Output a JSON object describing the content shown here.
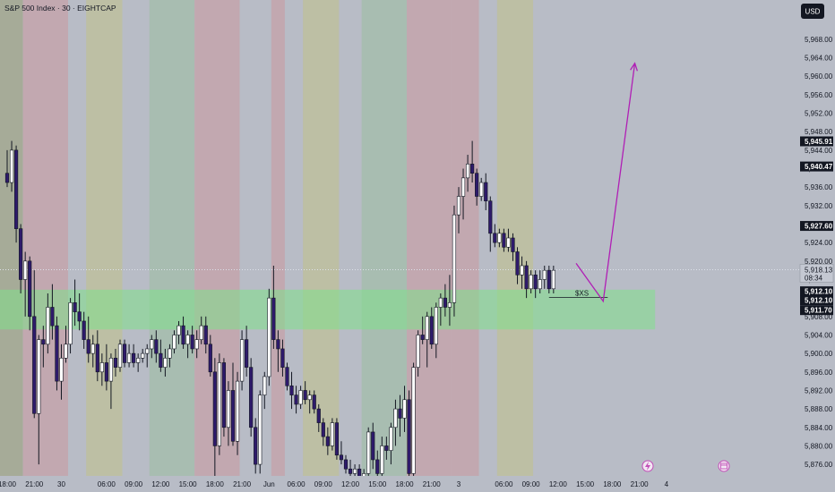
{
  "header": {
    "title": "S&P 500 Index · 30 · EIGHTCAP",
    "currency": "USD"
  },
  "chart_data": {
    "type": "candlestick",
    "title": "S&P 500 Index · 30 · EIGHTCAP",
    "ylim": [
      5873.5,
      5976.5
    ],
    "y_ticks": [
      "5,876.00",
      "5,880.00",
      "5,884.00",
      "5,888.00",
      "5,892.00",
      "5,896.00",
      "5,900.00",
      "5,904.00",
      "5,908.00",
      "5,912.00",
      "5,916.00",
      "5,920.00",
      "5,924.00",
      "5,928.00",
      "5,932.00",
      "5,936.00",
      "5,940.00",
      "5,944.00",
      "5,948.00",
      "5,952.00",
      "5,956.00",
      "5,960.00",
      "5,964.00",
      "5,968.00"
    ],
    "x_ticks": [
      "18:00",
      "21:00",
      "30",
      "06:00",
      "09:00",
      "12:00",
      "15:00",
      "18:00",
      "21:00",
      "Jun",
      "06:00",
      "09:00",
      "12:00",
      "15:00",
      "18:00",
      "21:00",
      "3",
      "06:00",
      "09:00",
      "12:00",
      "15:00",
      "18:00",
      "21:00",
      "4"
    ],
    "x_tick_bars": [
      0,
      6,
      12,
      22,
      28,
      34,
      40,
      46,
      52,
      58,
      64,
      70,
      76,
      82,
      88,
      94,
      100,
      110,
      116,
      122,
      128,
      134,
      140,
      146
    ],
    "session_bands": [
      {
        "start": -3.5,
        "end": 3.5,
        "color": "#a6ab98"
      },
      {
        "start": 3.5,
        "end": 13.5,
        "color": "#c2a8b0"
      },
      {
        "start": 13.5,
        "end": 17.5,
        "color": "#b8bcc6"
      },
      {
        "start": 17.5,
        "end": 25.5,
        "color": "#bdbfa4"
      },
      {
        "start": 25.5,
        "end": 31.5,
        "color": "#b8bcc6"
      },
      {
        "start": 31.5,
        "end": 41.5,
        "color": "#a8bdb1"
      },
      {
        "start": 41.5,
        "end": 51.5,
        "color": "#c2a8b0"
      },
      {
        "start": 51.5,
        "end": 58.5,
        "color": "#b8bcc6"
      },
      {
        "start": 58.5,
        "end": 61.5,
        "color": "#c2a8b0"
      },
      {
        "start": 61.5,
        "end": 65.5,
        "color": "#b8bcc6"
      },
      {
        "start": 65.5,
        "end": 73.5,
        "color": "#bdbfa4"
      },
      {
        "start": 73.5,
        "end": 78.5,
        "color": "#b8bcc6"
      },
      {
        "start": 78.5,
        "end": 88.5,
        "color": "#a8bdb1"
      },
      {
        "start": 88.5,
        "end": 98.5,
        "color": "#c2a8b0"
      },
      {
        "start": 98.5,
        "end": 104.5,
        "color": "#c2a8b0"
      },
      {
        "start": 104.5,
        "end": 108.5,
        "color": "#b8bcc6"
      },
      {
        "start": 108.5,
        "end": 116.5,
        "color": "#bdbfa4"
      },
      {
        "start": 116.5,
        "end": 152,
        "color": "#b8bcc6"
      }
    ],
    "candles": [
      {
        "o": 5939,
        "h": 5944,
        "l": 5936,
        "c": 5937
      },
      {
        "o": 5937,
        "h": 5946,
        "l": 5935,
        "c": 5944
      },
      {
        "o": 5944,
        "h": 5945,
        "l": 5924,
        "c": 5927
      },
      {
        "o": 5927,
        "h": 5928,
        "l": 5913,
        "c": 5916
      },
      {
        "o": 5916,
        "h": 5922,
        "l": 5908,
        "c": 5920
      },
      {
        "o": 5920,
        "h": 5921,
        "l": 5905,
        "c": 5908
      },
      {
        "o": 5908,
        "h": 5918,
        "l": 5886,
        "c": 5887
      },
      {
        "o": 5887,
        "h": 5904,
        "l": 5876,
        "c": 5903
      },
      {
        "o": 5903,
        "h": 5906,
        "l": 5897,
        "c": 5902
      },
      {
        "o": 5902,
        "h": 5913,
        "l": 5900,
        "c": 5910
      },
      {
        "o": 5910,
        "h": 5915,
        "l": 5903,
        "c": 5906
      },
      {
        "o": 5906,
        "h": 5908,
        "l": 5892,
        "c": 5894
      },
      {
        "o": 5894,
        "h": 5902,
        "l": 5890,
        "c": 5899
      },
      {
        "o": 5899,
        "h": 5906,
        "l": 5898,
        "c": 5902
      },
      {
        "o": 5902,
        "h": 5912,
        "l": 5900,
        "c": 5911
      },
      {
        "o": 5911,
        "h": 5916,
        "l": 5906,
        "c": 5909
      },
      {
        "o": 5909,
        "h": 5913,
        "l": 5905,
        "c": 5907
      },
      {
        "o": 5907,
        "h": 5909,
        "l": 5901,
        "c": 5903
      },
      {
        "o": 5903,
        "h": 5908,
        "l": 5898,
        "c": 5900
      },
      {
        "o": 5900,
        "h": 5904,
        "l": 5897,
        "c": 5902
      },
      {
        "o": 5902,
        "h": 5905,
        "l": 5894,
        "c": 5896
      },
      {
        "o": 5896,
        "h": 5900,
        "l": 5893,
        "c": 5898
      },
      {
        "o": 5898,
        "h": 5902,
        "l": 5892,
        "c": 5894
      },
      {
        "o": 5894,
        "h": 5900,
        "l": 5888,
        "c": 5899
      },
      {
        "o": 5899,
        "h": 5901,
        "l": 5895,
        "c": 5897
      },
      {
        "o": 5897,
        "h": 5903,
        "l": 5896,
        "c": 5902
      },
      {
        "o": 5902,
        "h": 5903,
        "l": 5897,
        "c": 5898
      },
      {
        "o": 5898,
        "h": 5902,
        "l": 5897,
        "c": 5900
      },
      {
        "o": 5900,
        "h": 5902,
        "l": 5897,
        "c": 5898
      },
      {
        "o": 5898,
        "h": 5900,
        "l": 5896,
        "c": 5899
      },
      {
        "o": 5899,
        "h": 5901,
        "l": 5898,
        "c": 5900
      },
      {
        "o": 5900,
        "h": 5902,
        "l": 5897,
        "c": 5901
      },
      {
        "o": 5901,
        "h": 5904,
        "l": 5899,
        "c": 5903
      },
      {
        "o": 5903,
        "h": 5905,
        "l": 5898,
        "c": 5900
      },
      {
        "o": 5900,
        "h": 5903,
        "l": 5896,
        "c": 5897
      },
      {
        "o": 5897,
        "h": 5901,
        "l": 5895,
        "c": 5899
      },
      {
        "o": 5899,
        "h": 5902,
        "l": 5897,
        "c": 5901
      },
      {
        "o": 5901,
        "h": 5905,
        "l": 5900,
        "c": 5904
      },
      {
        "o": 5904,
        "h": 5907,
        "l": 5902,
        "c": 5906
      },
      {
        "o": 5906,
        "h": 5908,
        "l": 5901,
        "c": 5902
      },
      {
        "o": 5902,
        "h": 5905,
        "l": 5899,
        "c": 5904
      },
      {
        "o": 5904,
        "h": 5906,
        "l": 5900,
        "c": 5901
      },
      {
        "o": 5901,
        "h": 5905,
        "l": 5899,
        "c": 5903
      },
      {
        "o": 5903,
        "h": 5908,
        "l": 5902,
        "c": 5906
      },
      {
        "o": 5906,
        "h": 5908,
        "l": 5900,
        "c": 5902
      },
      {
        "o": 5902,
        "h": 5904,
        "l": 5895,
        "c": 5896
      },
      {
        "o": 5896,
        "h": 5899,
        "l": 5873,
        "c": 5880
      },
      {
        "o": 5880,
        "h": 5900,
        "l": 5878,
        "c": 5898
      },
      {
        "o": 5898,
        "h": 5899,
        "l": 5882,
        "c": 5884
      },
      {
        "o": 5884,
        "h": 5894,
        "l": 5880,
        "c": 5892
      },
      {
        "o": 5892,
        "h": 5898,
        "l": 5880,
        "c": 5881
      },
      {
        "o": 5881,
        "h": 5896,
        "l": 5878,
        "c": 5894
      },
      {
        "o": 5894,
        "h": 5905,
        "l": 5892,
        "c": 5903
      },
      {
        "o": 5903,
        "h": 5906,
        "l": 5895,
        "c": 5897
      },
      {
        "o": 5897,
        "h": 5899,
        "l": 5882,
        "c": 5884
      },
      {
        "o": 5884,
        "h": 5886,
        "l": 5874,
        "c": 5876
      },
      {
        "o": 5876,
        "h": 5892,
        "l": 5874,
        "c": 5891
      },
      {
        "o": 5891,
        "h": 5896,
        "l": 5888,
        "c": 5895
      },
      {
        "o": 5895,
        "h": 5914,
        "l": 5893,
        "c": 5912
      },
      {
        "o": 5912,
        "h": 5919,
        "l": 5901,
        "c": 5903
      },
      {
        "o": 5903,
        "h": 5905,
        "l": 5896,
        "c": 5901
      },
      {
        "o": 5901,
        "h": 5903,
        "l": 5895,
        "c": 5897
      },
      {
        "o": 5897,
        "h": 5898,
        "l": 5892,
        "c": 5893
      },
      {
        "o": 5893,
        "h": 5896,
        "l": 5888,
        "c": 5891
      },
      {
        "o": 5891,
        "h": 5893,
        "l": 5887,
        "c": 5889
      },
      {
        "o": 5889,
        "h": 5893,
        "l": 5888,
        "c": 5892
      },
      {
        "o": 5892,
        "h": 5894,
        "l": 5889,
        "c": 5890
      },
      {
        "o": 5890,
        "h": 5892,
        "l": 5887,
        "c": 5891
      },
      {
        "o": 5891,
        "h": 5892,
        "l": 5887,
        "c": 5888
      },
      {
        "o": 5888,
        "h": 5889,
        "l": 5883,
        "c": 5885
      },
      {
        "o": 5885,
        "h": 5886,
        "l": 5880,
        "c": 5882
      },
      {
        "o": 5882,
        "h": 5884,
        "l": 5878,
        "c": 5880
      },
      {
        "o": 5880,
        "h": 5886,
        "l": 5879,
        "c": 5885
      },
      {
        "o": 5885,
        "h": 5886,
        "l": 5877,
        "c": 5878
      },
      {
        "o": 5878,
        "h": 5881,
        "l": 5876,
        "c": 5877
      },
      {
        "o": 5877,
        "h": 5878,
        "l": 5874,
        "c": 5875
      },
      {
        "o": 5875,
        "h": 5877,
        "l": 5872,
        "c": 5874
      },
      {
        "o": 5874,
        "h": 5876,
        "l": 5872,
        "c": 5875
      },
      {
        "o": 5875,
        "h": 5876,
        "l": 5872,
        "c": 5873
      },
      {
        "o": 5873,
        "h": 5875,
        "l": 5872,
        "c": 5874
      },
      {
        "o": 5874,
        "h": 5884,
        "l": 5872,
        "c": 5883
      },
      {
        "o": 5883,
        "h": 5885,
        "l": 5875,
        "c": 5877
      },
      {
        "o": 5877,
        "h": 5879,
        "l": 5872,
        "c": 5874
      },
      {
        "o": 5874,
        "h": 5882,
        "l": 5873,
        "c": 5880
      },
      {
        "o": 5880,
        "h": 5882,
        "l": 5877,
        "c": 5879
      },
      {
        "o": 5879,
        "h": 5885,
        "l": 5876,
        "c": 5884
      },
      {
        "o": 5884,
        "h": 5890,
        "l": 5880,
        "c": 5888
      },
      {
        "o": 5888,
        "h": 5891,
        "l": 5882,
        "c": 5886
      },
      {
        "o": 5886,
        "h": 5893,
        "l": 5883,
        "c": 5890
      },
      {
        "o": 5890,
        "h": 5892,
        "l": 5873,
        "c": 5874
      },
      {
        "o": 5874,
        "h": 5898,
        "l": 5873,
        "c": 5897
      },
      {
        "o": 5897,
        "h": 5905,
        "l": 5895,
        "c": 5904
      },
      {
        "o": 5904,
        "h": 5908,
        "l": 5902,
        "c": 5903
      },
      {
        "o": 5903,
        "h": 5909,
        "l": 5897,
        "c": 5908
      },
      {
        "o": 5908,
        "h": 5910,
        "l": 5901,
        "c": 5902
      },
      {
        "o": 5902,
        "h": 5911,
        "l": 5899,
        "c": 5910
      },
      {
        "o": 5910,
        "h": 5913,
        "l": 5906,
        "c": 5912
      },
      {
        "o": 5912,
        "h": 5915,
        "l": 5908,
        "c": 5910
      },
      {
        "o": 5910,
        "h": 5917,
        "l": 5906,
        "c": 5911
      },
      {
        "o": 5911,
        "h": 5932,
        "l": 5908,
        "c": 5930
      },
      {
        "o": 5930,
        "h": 5936,
        "l": 5926,
        "c": 5934
      },
      {
        "o": 5934,
        "h": 5940,
        "l": 5929,
        "c": 5938
      },
      {
        "o": 5938,
        "h": 5943,
        "l": 5935,
        "c": 5941
      },
      {
        "o": 5941,
        "h": 5946,
        "l": 5937,
        "c": 5939
      },
      {
        "o": 5939,
        "h": 5940,
        "l": 5932,
        "c": 5934
      },
      {
        "o": 5934,
        "h": 5938,
        "l": 5933,
        "c": 5937
      },
      {
        "o": 5937,
        "h": 5939,
        "l": 5931,
        "c": 5933
      },
      {
        "o": 5933,
        "h": 5934,
        "l": 5922,
        "c": 5926
      },
      {
        "o": 5926,
        "h": 5928,
        "l": 5923,
        "c": 5924
      },
      {
        "o": 5924,
        "h": 5927,
        "l": 5923,
        "c": 5926
      },
      {
        "o": 5926,
        "h": 5927,
        "l": 5922,
        "c": 5923
      },
      {
        "o": 5923,
        "h": 5927,
        "l": 5922,
        "c": 5925
      },
      {
        "o": 5925,
        "h": 5926,
        "l": 5920,
        "c": 5922
      },
      {
        "o": 5922,
        "h": 5923,
        "l": 5915,
        "c": 5917
      },
      {
        "o": 5917,
        "h": 5921,
        "l": 5914,
        "c": 5919
      },
      {
        "o": 5919,
        "h": 5920,
        "l": 5912,
        "c": 5914
      },
      {
        "o": 5914,
        "h": 5918,
        "l": 5913,
        "c": 5917
      },
      {
        "o": 5917,
        "h": 5918,
        "l": 5912,
        "c": 5914
      },
      {
        "o": 5914,
        "h": 5918,
        "l": 5913,
        "c": 5916
      },
      {
        "o": 5916,
        "h": 5919,
        "l": 5914,
        "c": 5918
      },
      {
        "o": 5918,
        "h": 5919,
        "l": 5913,
        "c": 5914
      },
      {
        "o": 5914,
        "h": 5919,
        "l": 5913,
        "c": 5918
      }
    ],
    "horizontal_lines": [
      {
        "label": "5,918.13",
        "price": 5918.13
      }
    ],
    "zone": {
      "top": 5913.8,
      "bottom": 5905.2,
      "start_bar": -3.5,
      "end_bar": 143.5,
      "color": "#7fe08a"
    },
    "projection": [
      {
        "bar": 126,
        "price": 5919.5
      },
      {
        "bar": 132,
        "price": 5911.3
      },
      {
        "bar": 139,
        "price": 5962.8
      }
    ],
    "sxs_label": "$XS",
    "sxs_line": {
      "price": 5912.1,
      "start_bar": 120,
      "end_bar": 133
    },
    "price_badges": [
      {
        "label": "5,945.91",
        "price": 5945.91,
        "bg": "#131722",
        "fg": "#ffffff"
      },
      {
        "label": "5,940.47",
        "price": 5940.47,
        "bg": "#131722",
        "fg": "#ffffff"
      },
      {
        "label": "5,927.60",
        "price": 5927.6,
        "bg": "#131722",
        "fg": "#ffffff"
      },
      {
        "label": "5,912.10",
        "price": 5912.1,
        "bg": "#131722",
        "fg": "#ffffff",
        "offset": -7
      },
      {
        "label": "5,912.10",
        "price": 5912.1,
        "bg": "#131722",
        "fg": "#ffffff",
        "offset": 3
      },
      {
        "label": "5,911.70",
        "price": 5911.7,
        "bg": "#131722",
        "fg": "#ffffff",
        "offset": 12
      }
    ],
    "current_price": {
      "label": "5,918.13",
      "countdown": "08:34"
    },
    "colors": {
      "up": "#ffffff",
      "down": "#2e1a6b",
      "wick": "#131722",
      "projection": "#b01fb5"
    },
    "x_icons": [
      "lightning-icon",
      "calendar-icon"
    ]
  }
}
